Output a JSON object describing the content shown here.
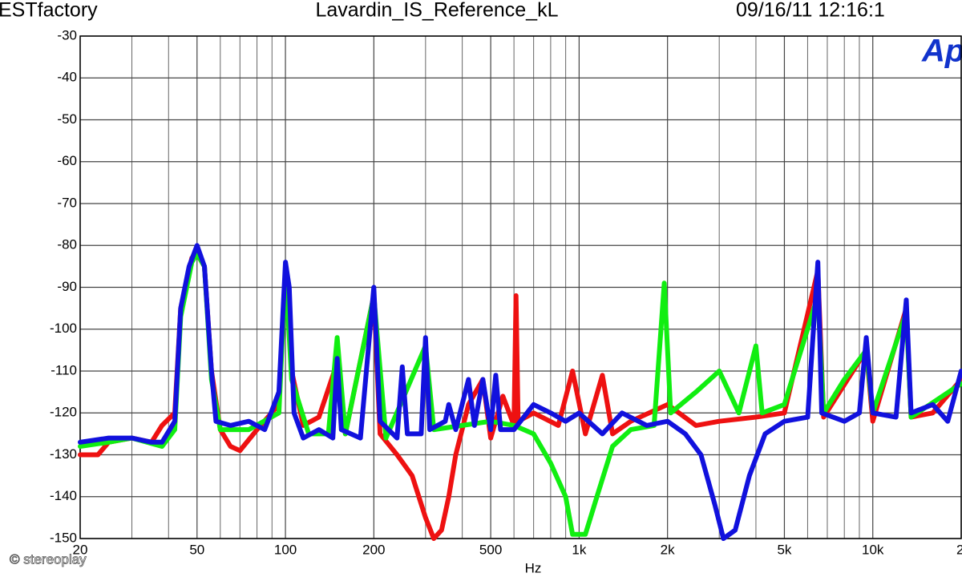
{
  "chart_data": {
    "type": "line",
    "header_left": "ESTfactory",
    "title": "Lavardin_IS_Reference_kL",
    "header_right": "09/16/11 12:16:1",
    "logo": "Ap",
    "watermark": "© stereoplay",
    "x_label": "Hz",
    "x_log": true,
    "grid": true,
    "xlim": [
      20,
      20000
    ],
    "ylim": [
      -150,
      -30
    ],
    "xticks": [
      20,
      50,
      100,
      200,
      500,
      {
        "value": 1000,
        "label": "1k"
      },
      {
        "value": 2000,
        "label": "2k"
      },
      {
        "value": 5000,
        "label": "5k"
      },
      {
        "value": 10000,
        "label": "10k"
      },
      {
        "value": 20000,
        "label": "2"
      }
    ],
    "xminorticks": [
      30,
      40,
      60,
      70,
      80,
      90,
      300,
      400,
      600,
      700,
      800,
      900,
      3000,
      4000,
      6000,
      7000,
      8000,
      9000
    ],
    "yticks": [
      -30,
      -40,
      -50,
      -60,
      -70,
      -80,
      -90,
      -100,
      -110,
      -120,
      -130,
      -140,
      -150
    ],
    "series": [
      {
        "color": "#ee1111",
        "x": [
          20,
          23,
          25,
          30,
          35,
          38,
          42,
          44,
          48,
          50,
          53,
          56,
          60,
          65,
          70,
          80,
          95,
          100,
          105,
          115,
          130,
          150,
          160,
          200,
          210,
          240,
          270,
          300,
          320,
          340,
          360,
          380,
          420,
          470,
          500,
          550,
          600,
          610,
          620,
          700,
          850,
          950,
          1050,
          1200,
          1300,
          1500,
          2000,
          2500,
          3000,
          4000,
          5000,
          6500,
          6800,
          9500,
          10000,
          13000,
          13500,
          16000,
          20000
        ],
        "values": [
          -130,
          -130,
          -127,
          -126,
          -127,
          -123,
          -120,
          -95,
          -83,
          -82,
          -85,
          -110,
          -124,
          -128,
          -129,
          -124,
          -118,
          -86,
          -110,
          -123,
          -121,
          -108,
          -125,
          -92,
          -125,
          -130,
          -135,
          -145,
          -150,
          -148,
          -140,
          -130,
          -118,
          -112,
          -126,
          -116,
          -123,
          -92,
          -122,
          -120,
          -123,
          -110,
          -125,
          -111,
          -125,
          -122,
          -118,
          -123,
          -122,
          -121,
          -120,
          -86,
          -121,
          -105,
          -122,
          -95,
          -121,
          -120,
          -112
        ]
      },
      {
        "color": "#11ee11",
        "x": [
          20,
          25,
          30,
          38,
          42,
          44,
          48,
          50,
          53,
          56,
          60,
          75,
          95,
          100,
          105,
          120,
          140,
          150,
          160,
          200,
          220,
          300,
          320,
          400,
          500,
          600,
          700,
          800,
          900,
          950,
          1050,
          1150,
          1300,
          1500,
          1800,
          1950,
          2050,
          2500,
          3000,
          3500,
          4000,
          4200,
          5000,
          6500,
          6800,
          8000,
          9500,
          10000,
          13000,
          13500,
          20000
        ],
        "values": [
          -128,
          -127,
          -126,
          -128,
          -124,
          -97,
          -84,
          -82,
          -85,
          -112,
          -124,
          -124,
          -120,
          -86,
          -112,
          -125,
          -125,
          -102,
          -125,
          -92,
          -126,
          -104,
          -124,
          -123,
          -122,
          -123,
          -125,
          -132,
          -140,
          -149,
          -149,
          -140,
          -128,
          -124,
          -123,
          -89,
          -120,
          -115,
          -110,
          -120,
          -104,
          -120,
          -118,
          -92,
          -120,
          -112,
          -105,
          -120,
          -96,
          -121,
          -113
        ]
      },
      {
        "color": "#1111dd",
        "x": [
          20,
          25,
          30,
          35,
          38,
          42,
          44,
          47,
          50,
          53,
          56,
          58,
          65,
          75,
          85,
          95,
          100,
          103,
          107,
          115,
          130,
          145,
          150,
          155,
          180,
          200,
          210,
          240,
          250,
          260,
          290,
          300,
          310,
          350,
          360,
          380,
          420,
          440,
          470,
          500,
          520,
          540,
          600,
          700,
          800,
          900,
          1000,
          1200,
          1400,
          1700,
          2000,
          2300,
          2600,
          2900,
          3100,
          3400,
          3800,
          4300,
          5000,
          6000,
          6500,
          6700,
          8000,
          9000,
          9500,
          10000,
          12000,
          13000,
          13500,
          16000,
          18000,
          20000
        ],
        "values": [
          -127,
          -126,
          -126,
          -127,
          -127,
          -122,
          -95,
          -85,
          -80,
          -85,
          -110,
          -122,
          -123,
          -122,
          -124,
          -115,
          -84,
          -90,
          -120,
          -126,
          -124,
          -126,
          -107,
          -124,
          -126,
          -90,
          -122,
          -126,
          -109,
          -125,
          -125,
          -102,
          -124,
          -122,
          -118,
          -124,
          -112,
          -123,
          -112,
          -124,
          -111,
          -124,
          -124,
          -118,
          -120,
          -122,
          -120,
          -125,
          -120,
          -123,
          -122,
          -125,
          -130,
          -142,
          -150,
          -148,
          -135,
          -125,
          -122,
          -121,
          -84,
          -120,
          -122,
          -120,
          -102,
          -120,
          -121,
          -93,
          -120,
          -118,
          -122,
          -110
        ]
      }
    ]
  }
}
